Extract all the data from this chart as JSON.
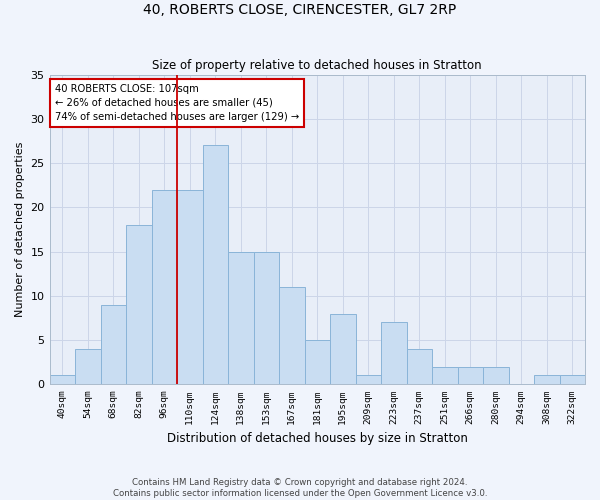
{
  "title1": "40, ROBERTS CLOSE, CIRENCESTER, GL7 2RP",
  "title2": "Size of property relative to detached houses in Stratton",
  "xlabel": "Distribution of detached houses by size in Stratton",
  "ylabel": "Number of detached properties",
  "categories": [
    "40sqm",
    "54sqm",
    "68sqm",
    "82sqm",
    "96sqm",
    "110sqm",
    "124sqm",
    "138sqm",
    "153sqm",
    "167sqm",
    "181sqm",
    "195sqm",
    "209sqm",
    "223sqm",
    "237sqm",
    "251sqm",
    "266sqm",
    "280sqm",
    "294sqm",
    "308sqm",
    "322sqm"
  ],
  "values": [
    1,
    4,
    9,
    18,
    22,
    22,
    27,
    15,
    15,
    11,
    5,
    8,
    1,
    7,
    4,
    2,
    2,
    2,
    0,
    1,
    1
  ],
  "bar_color": "#c9ddf2",
  "bar_edge_color": "#8ab4d8",
  "grid_color": "#ccd5e8",
  "background_color": "#e8eef8",
  "property_line_x": 4.5,
  "annotation_text": "40 ROBERTS CLOSE: 107sqm\n← 26% of detached houses are smaller (45)\n74% of semi-detached houses are larger (129) →",
  "annotation_box_color": "#ffffff",
  "annotation_box_edge": "#cc0000",
  "property_line_color": "#cc0000",
  "footer1": "Contains HM Land Registry data © Crown copyright and database right 2024.",
  "footer2": "Contains public sector information licensed under the Open Government Licence v3.0.",
  "ylim": [
    0,
    35
  ],
  "fig_bg": "#f0f4fc"
}
